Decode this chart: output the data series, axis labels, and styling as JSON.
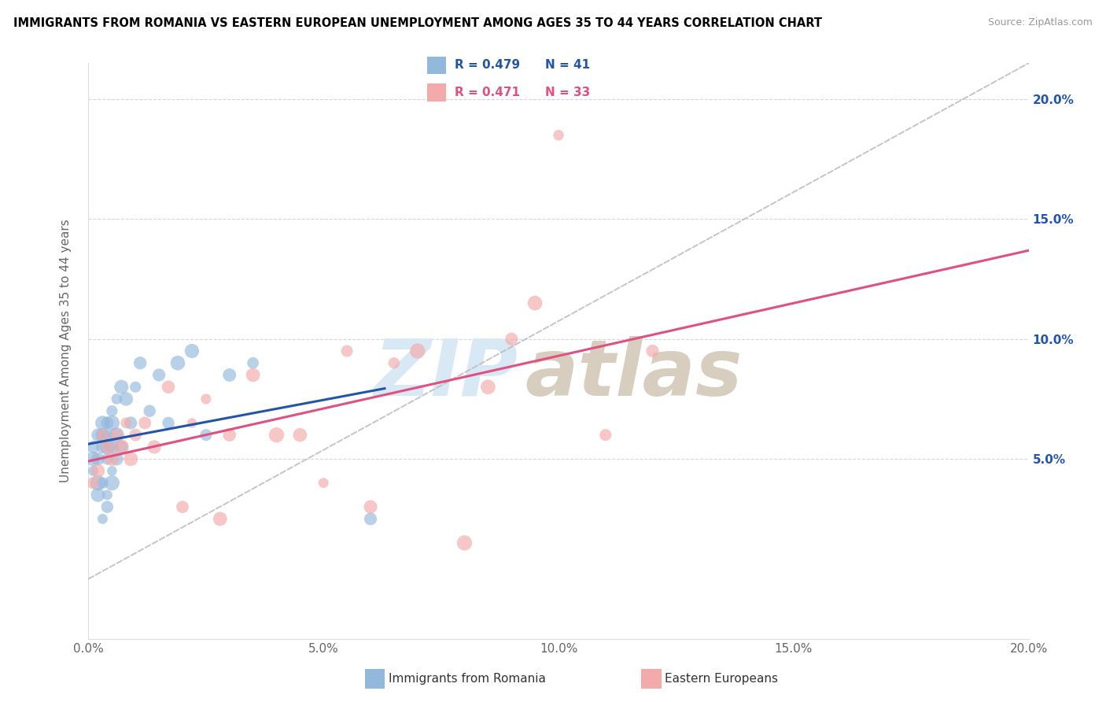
{
  "title": "IMMIGRANTS FROM ROMANIA VS EASTERN EUROPEAN UNEMPLOYMENT AMONG AGES 35 TO 44 YEARS CORRELATION CHART",
  "source": "Source: ZipAtlas.com",
  "ylabel": "Unemployment Among Ages 35 to 44 years",
  "romania_R": 0.479,
  "romania_N": 41,
  "eastern_R": 0.471,
  "eastern_N": 33,
  "romania_color": "#92B8DC",
  "eastern_color": "#F4AAAA",
  "romania_line_color": "#2255AA",
  "eastern_line_color": "#E05080",
  "legend_label_romania": "Immigrants from Romania",
  "legend_label_eastern": "Eastern Europeans",
  "xlim": [
    0.0,
    0.2
  ],
  "ylim": [
    -0.025,
    0.215
  ],
  "romania_x": [
    0.001,
    0.001,
    0.001,
    0.002,
    0.002,
    0.002,
    0.002,
    0.003,
    0.003,
    0.003,
    0.003,
    0.003,
    0.004,
    0.004,
    0.004,
    0.004,
    0.004,
    0.004,
    0.005,
    0.005,
    0.005,
    0.005,
    0.005,
    0.006,
    0.006,
    0.006,
    0.007,
    0.007,
    0.008,
    0.009,
    0.01,
    0.011,
    0.013,
    0.015,
    0.017,
    0.019,
    0.022,
    0.025,
    0.03,
    0.035,
    0.06
  ],
  "romania_y": [
    0.045,
    0.05,
    0.055,
    0.035,
    0.04,
    0.05,
    0.06,
    0.025,
    0.04,
    0.055,
    0.06,
    0.065,
    0.03,
    0.035,
    0.05,
    0.055,
    0.06,
    0.065,
    0.04,
    0.045,
    0.055,
    0.065,
    0.07,
    0.05,
    0.06,
    0.075,
    0.055,
    0.08,
    0.075,
    0.065,
    0.08,
    0.09,
    0.07,
    0.085,
    0.065,
    0.09,
    0.095,
    0.06,
    0.085,
    0.09,
    0.025
  ],
  "eastern_x": [
    0.001,
    0.002,
    0.003,
    0.004,
    0.005,
    0.006,
    0.007,
    0.008,
    0.009,
    0.01,
    0.012,
    0.014,
    0.017,
    0.02,
    0.022,
    0.025,
    0.028,
    0.03,
    0.035,
    0.04,
    0.045,
    0.05,
    0.055,
    0.06,
    0.065,
    0.07,
    0.08,
    0.085,
    0.09,
    0.095,
    0.1,
    0.11,
    0.12
  ],
  "eastern_y": [
    0.04,
    0.045,
    0.06,
    0.055,
    0.05,
    0.06,
    0.055,
    0.065,
    0.05,
    0.06,
    0.065,
    0.055,
    0.08,
    0.03,
    0.065,
    0.075,
    0.025,
    0.06,
    0.085,
    0.06,
    0.06,
    0.04,
    0.095,
    0.03,
    0.09,
    0.095,
    0.015,
    0.08,
    0.1,
    0.115,
    0.185,
    0.06,
    0.095
  ]
}
